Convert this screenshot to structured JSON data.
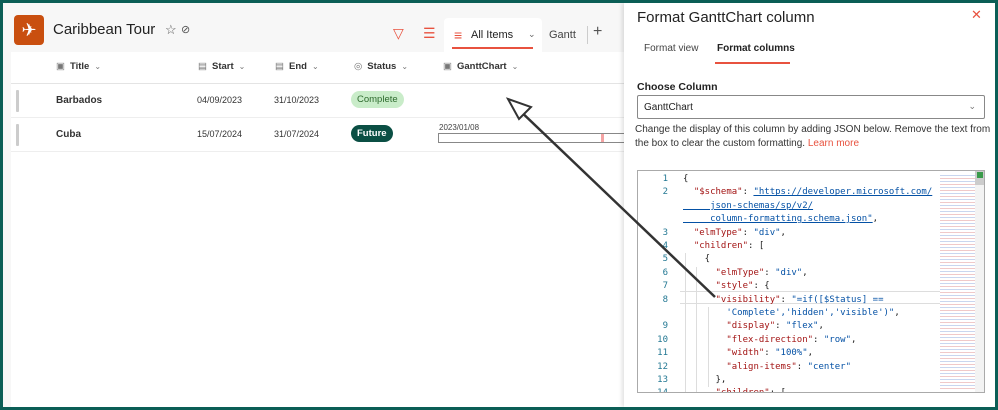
{
  "site": {
    "title": "Caribbean Tour",
    "logo_icon": "airplane-icon"
  },
  "toolbar": {
    "views": [
      {
        "label": "All Items",
        "active": true
      },
      {
        "label": "Gantt"
      }
    ]
  },
  "list": {
    "columns": [
      "Title",
      "Start",
      "End",
      "Status",
      "GanttChart"
    ],
    "rows": [
      {
        "title": "Barbados",
        "start": "04/09/2023",
        "end": "31/10/2023",
        "status": "Complete",
        "status_bg": "#c9ecc9",
        "status_fg": "#2e6b2e",
        "gantt_date": "",
        "gantt_progress": null
      },
      {
        "title": "Cuba",
        "start": "15/07/2024",
        "end": "31/07/2024",
        "status": "Future",
        "status_bg": "#0b4f44",
        "status_fg": "#ffffff",
        "gantt_date": "2023/01/08",
        "gantt_progress": 0.86
      }
    ]
  },
  "panel": {
    "title": "Format GanttChart column",
    "tabs": [
      "Format view",
      "Format columns"
    ],
    "active_tab": "Format columns",
    "choose_label": "Choose Column",
    "selected_column": "GanttChart",
    "description": "Change the display of this column by adding JSON below. Remove the text from the box to clear the custom formatting.",
    "learn_more": "Learn more",
    "code": [
      {
        "n": "1",
        "seg": [
          [
            "p",
            "{"
          ]
        ]
      },
      {
        "n": "2",
        "seg": [
          [
            "k",
            "  \"$schema\""
          ],
          [
            "p",
            ": "
          ],
          [
            "u",
            "\"https://developer.microsoft.com/"
          ]
        ]
      },
      {
        "n": "",
        "seg": [
          [
            "u",
            "     json-schemas/sp/v2/"
          ]
        ]
      },
      {
        "n": "",
        "seg": [
          [
            "u",
            "     column-formatting.schema.json\""
          ],
          [
            "p",
            ","
          ]
        ]
      },
      {
        "n": "3",
        "seg": [
          [
            "k",
            "  \"elmType\""
          ],
          [
            "p",
            ": "
          ],
          [
            "s",
            "\"div\""
          ],
          [
            "p",
            ","
          ]
        ]
      },
      {
        "n": "4",
        "seg": [
          [
            "k",
            "  \"children\""
          ],
          [
            "p",
            ": ["
          ]
        ]
      },
      {
        "n": "5",
        "seg": [
          [
            "p",
            "    {"
          ]
        ]
      },
      {
        "n": "6",
        "seg": [
          [
            "k",
            "      \"elmType\""
          ],
          [
            "p",
            ": "
          ],
          [
            "s",
            "\"div\""
          ],
          [
            "p",
            ","
          ]
        ]
      },
      {
        "n": "7",
        "seg": [
          [
            "k",
            "      \"style\""
          ],
          [
            "p",
            ": {"
          ]
        ]
      },
      {
        "n": "8",
        "seg": [
          [
            "k",
            "      \"visibility\""
          ],
          [
            "p",
            ": "
          ],
          [
            "s",
            "\"=if([$Status] =="
          ]
        ]
      },
      {
        "n": "",
        "seg": [
          [
            "s",
            "        'Complete','hidden','visible')\""
          ],
          [
            "p",
            ","
          ]
        ]
      },
      {
        "n": "9",
        "seg": [
          [
            "k",
            "        \"display\""
          ],
          [
            "p",
            ": "
          ],
          [
            "s",
            "\"flex\""
          ],
          [
            "p",
            ","
          ]
        ]
      },
      {
        "n": "10",
        "seg": [
          [
            "k",
            "        \"flex-direction\""
          ],
          [
            "p",
            ": "
          ],
          [
            "s",
            "\"row\""
          ],
          [
            "p",
            ","
          ]
        ]
      },
      {
        "n": "11",
        "seg": [
          [
            "k",
            "        \"width\""
          ],
          [
            "p",
            ": "
          ],
          [
            "s",
            "\"100%\""
          ],
          [
            "p",
            ","
          ]
        ]
      },
      {
        "n": "12",
        "seg": [
          [
            "k",
            "        \"align-items\""
          ],
          [
            "p",
            ": "
          ],
          [
            "s",
            "\"center\""
          ]
        ]
      },
      {
        "n": "13",
        "seg": [
          [
            "p",
            "      },"
          ]
        ]
      },
      {
        "n": "14",
        "seg": [
          [
            "k",
            "      \"children\""
          ],
          [
            "p",
            ": ["
          ]
        ]
      }
    ]
  },
  "colors": {
    "accent": "#e8523f",
    "frame": "#0b5e56",
    "logo": "#c94f0f"
  }
}
